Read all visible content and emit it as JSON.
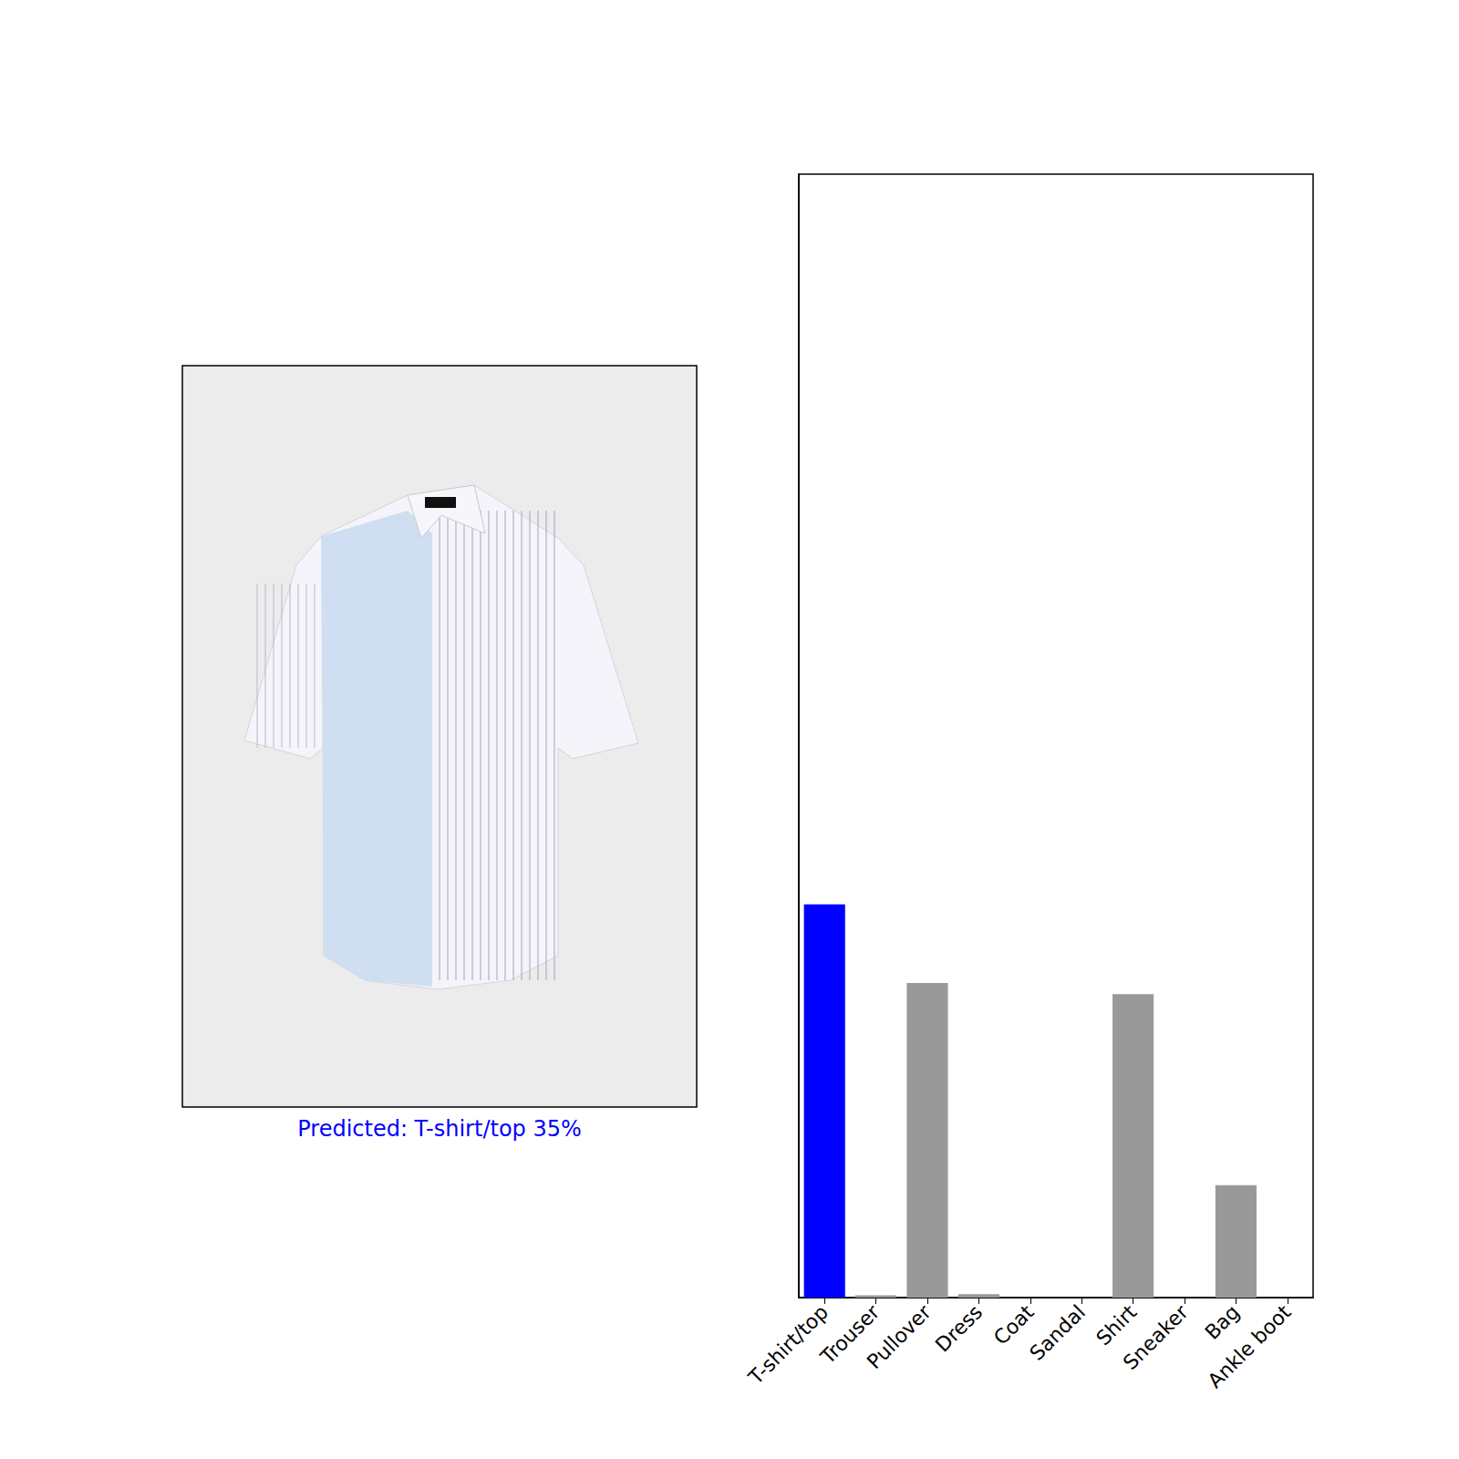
{
  "chart_data": [
    {
      "type": "image",
      "xlabel": "Predicted: T-shirt/top 35%",
      "color": "#0000ff",
      "tick_labels": false
    },
    {
      "type": "bar",
      "categories": [
        "T-shirt/top",
        "Trouser",
        "Pullover",
        "Dress",
        "Coat",
        "Sandal",
        "Shirt",
        "Sneaker",
        "Bag",
        "Ankle boot"
      ],
      "values": [
        0.35,
        0.002,
        0.28,
        0.003,
        0,
        0,
        0.27,
        0,
        0.1,
        0
      ],
      "colors": [
        "#0000ff",
        "#999999",
        "#999999",
        "#999999",
        "#999999",
        "#999999",
        "#999999",
        "#999999",
        "#999999",
        "#999999"
      ],
      "ylim": [
        0,
        1
      ],
      "grid": false,
      "tick_labels": "x"
    }
  ]
}
